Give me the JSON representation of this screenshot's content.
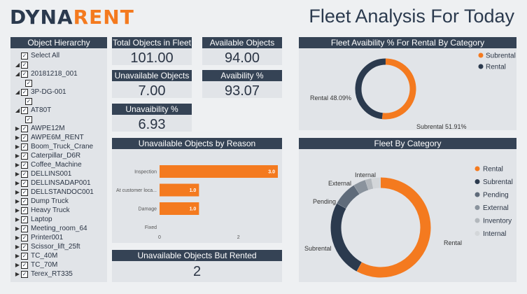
{
  "brand": {
    "part1": "DYNA",
    "part2": "RENT"
  },
  "page_title": "Fleet Analysis For Today",
  "hierarchy": {
    "title": "Object Hierarchy",
    "select_all": "Select All",
    "items": [
      {
        "label": "20181218_001",
        "expand": "down"
      },
      {
        "label": "3P-DG-001",
        "expand": "down"
      },
      {
        "label": "AT80T",
        "expand": "down"
      },
      {
        "label": "AWPE12M",
        "expand": "right"
      },
      {
        "label": "AWPE6M_RENT",
        "expand": "right"
      },
      {
        "label": "Boom_Truck_Crane",
        "expand": "right"
      },
      {
        "label": "Caterpillar_D6R",
        "expand": "right"
      },
      {
        "label": "Coffee_Machine",
        "expand": "right"
      },
      {
        "label": "DELLINS001",
        "expand": "right"
      },
      {
        "label": "DELLINSADAP001",
        "expand": "right"
      },
      {
        "label": "DELLSTANDOC001",
        "expand": "right"
      },
      {
        "label": "Dump Truck",
        "expand": "right"
      },
      {
        "label": "Heavy Truck",
        "expand": "right"
      },
      {
        "label": "Laptop",
        "expand": "right"
      },
      {
        "label": "Meeting_room_64",
        "expand": "right"
      },
      {
        "label": "Printer001",
        "expand": "right"
      },
      {
        "label": "Scissor_lift_25ft",
        "expand": "right"
      },
      {
        "label": "TC_40M",
        "expand": "right"
      },
      {
        "label": "TC_70M",
        "expand": "right"
      },
      {
        "label": "Terex_RT335",
        "expand": "right"
      }
    ]
  },
  "kpis": {
    "total": {
      "title": "Total Objects in Fleet",
      "value": "101.00"
    },
    "available": {
      "title": "Available Objects",
      "value": "94.00"
    },
    "unavailable": {
      "title": "Unavailable Objects",
      "value": "7.00"
    },
    "availability": {
      "title": "Avaibility %",
      "value": "93.07"
    },
    "unavailability": {
      "title": "Unavaibility %",
      "value": "6.93"
    },
    "rented": {
      "title": "Unavailable Objects But Rented",
      "value": "2"
    }
  },
  "colors": {
    "orange": "#f47a1f",
    "navy": "#2b3a4e",
    "slate": "#5f6b7a",
    "gray": "#8a939d",
    "lightgray": "#b3b8bd",
    "verylight": "#d3d6d9"
  },
  "chart_data": [
    {
      "type": "bar",
      "title": "Unavailable Objects by Reason",
      "categories": [
        "Inspection",
        "At customer loca...",
        "Damage",
        "Fixed"
      ],
      "values": [
        3,
        1,
        1,
        0
      ],
      "value_labels": [
        "3.0",
        "1.0",
        "1.0",
        ""
      ],
      "xticks": [
        "0",
        "2"
      ],
      "xlim": [
        0,
        3.0
      ],
      "orientation": "horizontal"
    },
    {
      "type": "pie",
      "title": "Fleet Avaibility % For Rental By Category",
      "donut": true,
      "legend": "top-right",
      "slices": [
        {
          "label": "Subrental",
          "value": 51.91,
          "text": "Subrental 51.91%",
          "color": "#f47a1f"
        },
        {
          "label": "Rental",
          "value": 48.09,
          "text": "Rental 48.09%",
          "color": "#2b3a4e"
        }
      ]
    },
    {
      "type": "pie",
      "title": "Fleet By Category",
      "donut": true,
      "legend": "right",
      "slices": [
        {
          "label": "Rental",
          "value": 58,
          "color": "#f47a1f"
        },
        {
          "label": "Subrental",
          "value": 25,
          "color": "#2b3a4e"
        },
        {
          "label": "Pending",
          "value": 8,
          "color": "#5f6b7a"
        },
        {
          "label": "External",
          "value": 4,
          "color": "#8a939d"
        },
        {
          "label": "Inventory",
          "value": 2,
          "color": "#b3b8bd"
        },
        {
          "label": "Internal",
          "value": 3,
          "color": "#d3d6d9"
        }
      ],
      "outer_labels": [
        "Rental",
        "Subrental",
        "Pending",
        "External",
        "Internal"
      ]
    }
  ]
}
